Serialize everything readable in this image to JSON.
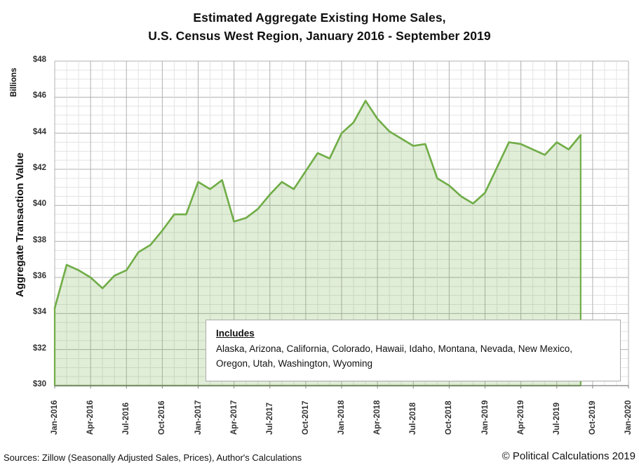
{
  "title": {
    "line1": "Estimated Aggregate Existing Home Sales,",
    "line2": "U.S. Census West Region, January 2016 - September 2019"
  },
  "y_axis": {
    "title": "Aggregate Transaction Value",
    "unit_label": "Billions",
    "tick_labels": [
      "$48",
      "$46",
      "$44",
      "$42",
      "$40",
      "$38",
      "$36",
      "$34",
      "$32",
      "$30"
    ]
  },
  "x_axis": {
    "tick_labels": [
      "Jan-2016",
      "Apr-2016",
      "Jul-2016",
      "Oct-2016",
      "Jan-2017",
      "Apr-2017",
      "Jul-2017",
      "Oct-2017",
      "Jan-2018",
      "Apr-2018",
      "Jul-2018",
      "Oct-2018",
      "Jan-2019",
      "Apr-2019",
      "Jul-2019",
      "Oct-2019",
      "Jan-2020"
    ]
  },
  "annotation": {
    "heading": "Includes",
    "body": "Alaska, Arizona, California, Colorado, Hawaii, Idaho, Montana, Nevada, New Mexico, Oregon, Utah, Washington, Wyoming"
  },
  "footer": {
    "sources": "Sources: Zillow (Seasonally Adjusted Sales, Prices), Author's Calculations",
    "copyright": "© Political Calculations 2019"
  },
  "colors": {
    "line": "#70AD47",
    "fill": "rgba(112,173,71,0.22)",
    "grid_major": "#B1B1B1",
    "grid_minor": "#E3E3E3",
    "axis": "#7F7F7F"
  },
  "chart_data": {
    "type": "area",
    "title": "Estimated Aggregate Existing Home Sales, U.S. Census West Region, January 2016 - September 2019",
    "xlabel": "",
    "ylabel": "Aggregate Transaction Value (Billions)",
    "units": "USD billions",
    "frequency": "monthly",
    "x_start": "Jan-2016",
    "x_end": "Sep-2019",
    "x_axis_range": [
      "Jan-2016",
      "Jan-2020"
    ],
    "ylim": [
      30,
      48
    ],
    "y_major_step": 2,
    "y_minor_step": 0.5,
    "grid": true,
    "legend": false,
    "categories": [
      "Jan-2016",
      "Feb-2016",
      "Mar-2016",
      "Apr-2016",
      "May-2016",
      "Jun-2016",
      "Jul-2016",
      "Aug-2016",
      "Sep-2016",
      "Oct-2016",
      "Nov-2016",
      "Dec-2016",
      "Jan-2017",
      "Feb-2017",
      "Mar-2017",
      "Apr-2017",
      "May-2017",
      "Jun-2017",
      "Jul-2017",
      "Aug-2017",
      "Sep-2017",
      "Oct-2017",
      "Nov-2017",
      "Dec-2017",
      "Jan-2018",
      "Feb-2018",
      "Mar-2018",
      "Apr-2018",
      "May-2018",
      "Jun-2018",
      "Jul-2018",
      "Aug-2018",
      "Sep-2018",
      "Oct-2018",
      "Nov-2018",
      "Dec-2018",
      "Jan-2019",
      "Feb-2019",
      "Mar-2019",
      "Apr-2019",
      "May-2019",
      "Jun-2019",
      "Jul-2019",
      "Aug-2019",
      "Sep-2019"
    ],
    "values": [
      34.3,
      36.7,
      36.4,
      36.0,
      35.4,
      36.1,
      36.4,
      37.4,
      37.8,
      38.6,
      39.5,
      39.5,
      41.3,
      40.9,
      41.4,
      39.1,
      39.3,
      39.8,
      40.6,
      41.3,
      40.9,
      41.9,
      42.9,
      42.6,
      44.0,
      44.6,
      45.8,
      44.8,
      44.1,
      43.7,
      43.3,
      43.4,
      41.5,
      41.1,
      40.5,
      40.1,
      40.7,
      42.1,
      43.5,
      43.4,
      43.1,
      42.8,
      43.5,
      43.1,
      43.9
    ]
  }
}
